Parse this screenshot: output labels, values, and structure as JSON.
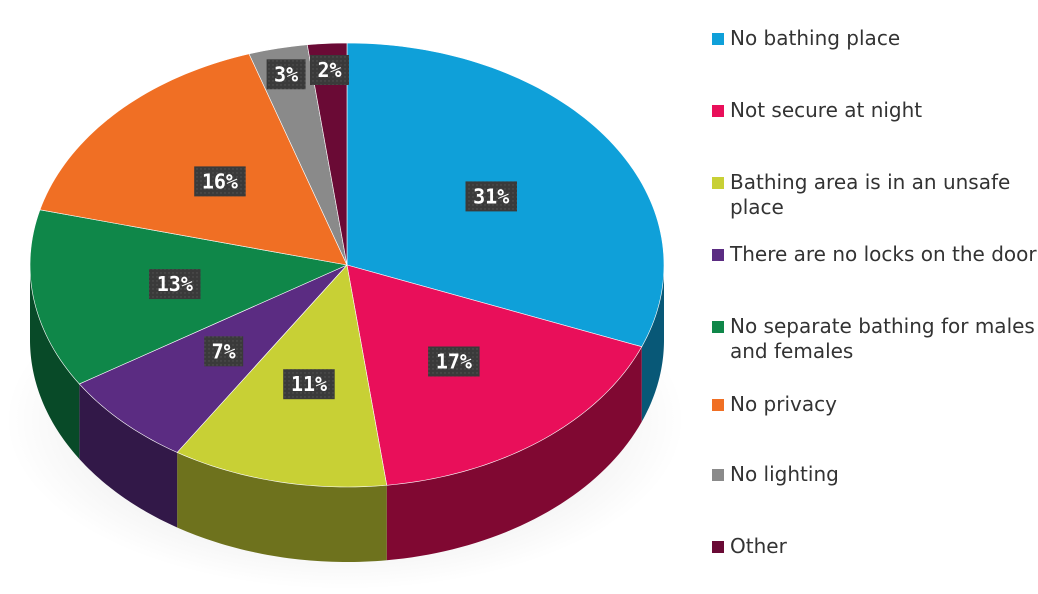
{
  "chart_data": {
    "type": "pie",
    "title": "",
    "slices": [
      {
        "label": "No bathing place",
        "value": 31,
        "display": "31%",
        "color": "#0fa0d9"
      },
      {
        "label": "Not secure at night",
        "value": 17,
        "display": "17%",
        "color": "#e90f5a"
      },
      {
        "label": "Bathing area is in an unsafe place",
        "value": 11,
        "display": "11%",
        "color": "#c8d035"
      },
      {
        "label": "There are no locks on the door",
        "value": 7,
        "display": "7%",
        "color": "#5b2c82"
      },
      {
        "label": "No separate bathing for males and females",
        "value": 13,
        "display": "13%",
        "color": "#0f8749"
      },
      {
        "label": "No privacy",
        "value": 16,
        "display": "16%",
        "color": "#f06f24"
      },
      {
        "label": "No lighting",
        "value": 3,
        "display": "3%",
        "color": "#8a8a8a"
      },
      {
        "label": "Other",
        "value": 2,
        "display": "2%",
        "color": "#6a0a35"
      }
    ],
    "legend_position": "right"
  }
}
